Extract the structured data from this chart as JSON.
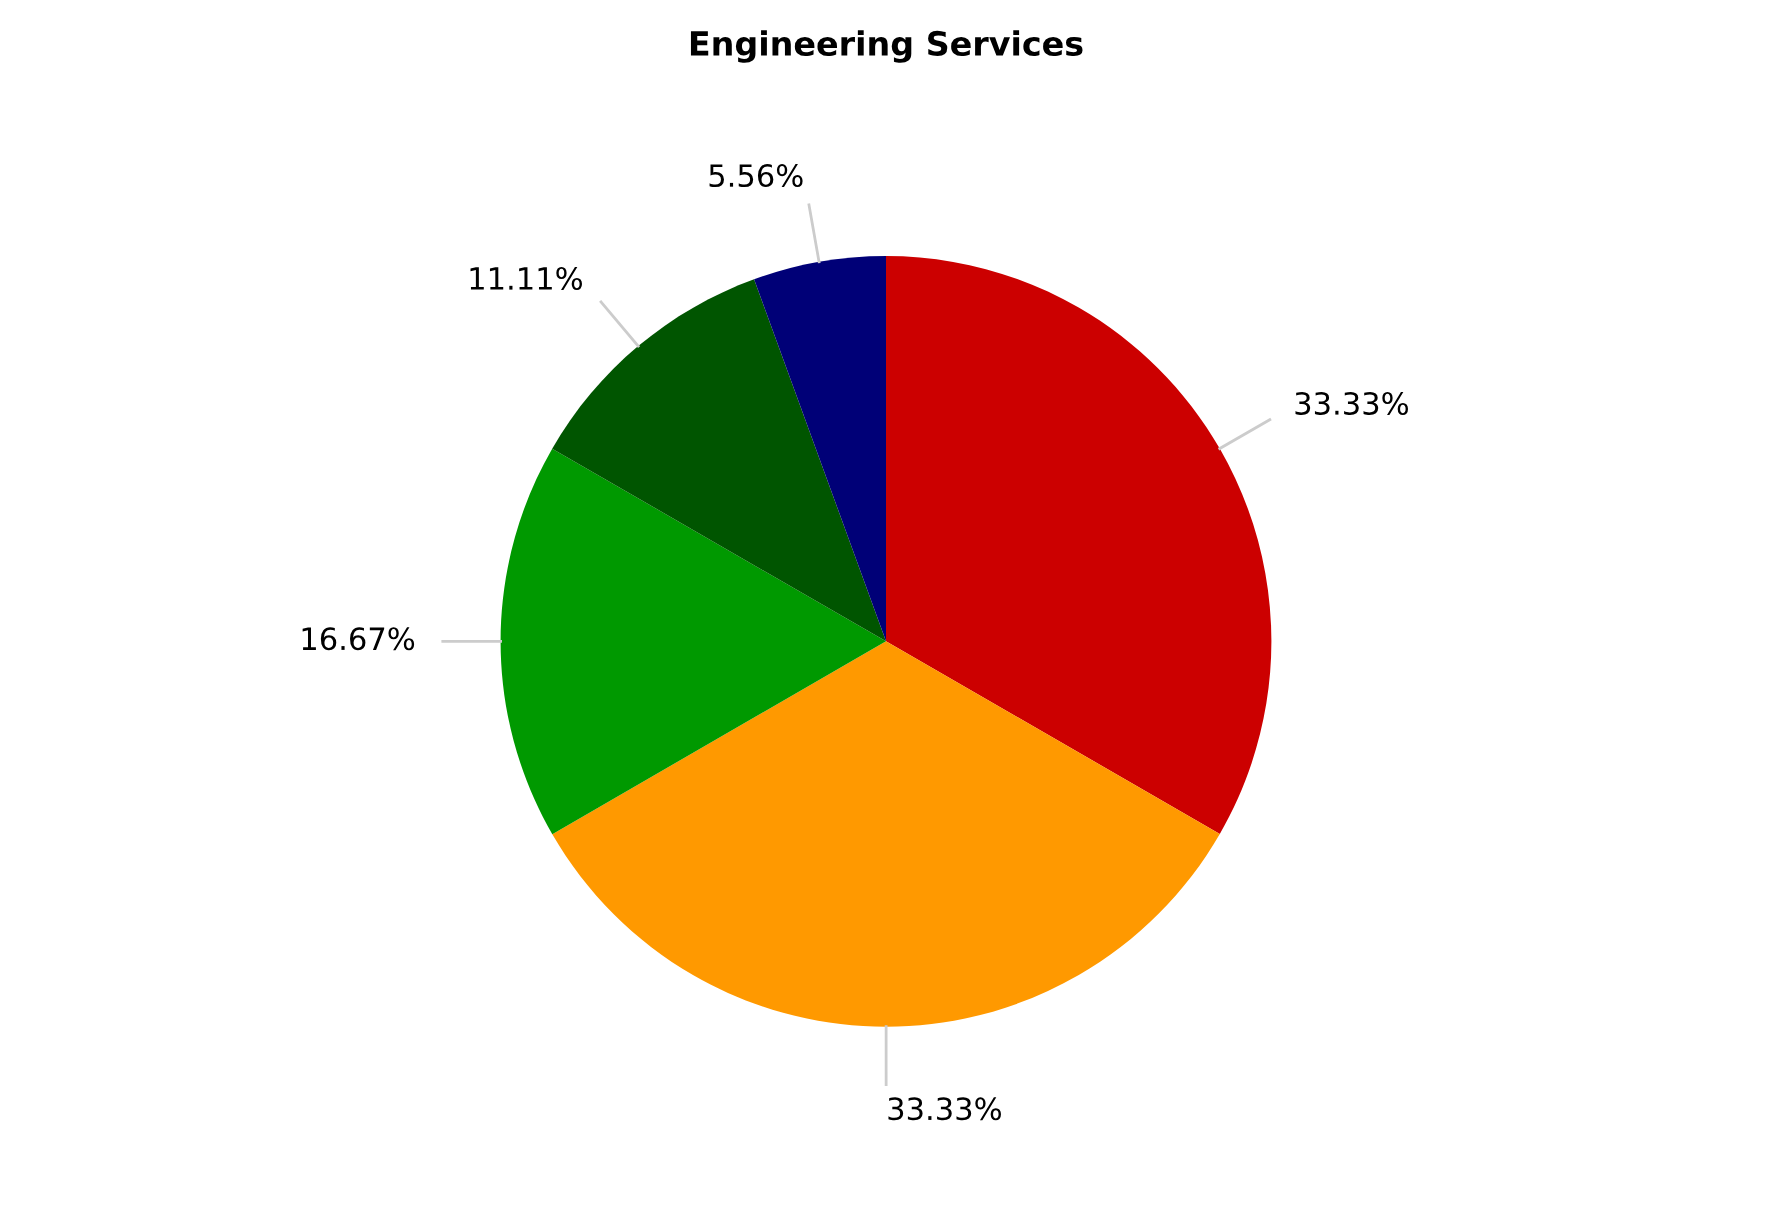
{
  "chart_data": {
    "type": "pie",
    "title": "Engineering Services",
    "categories": [
      null,
      null,
      null,
      null,
      null
    ],
    "values": [
      33.33,
      33.33,
      16.67,
      11.11,
      5.56
    ],
    "colors": [
      "#cc0000",
      "#ff9900",
      "#009900",
      "#005500",
      "#000077"
    ],
    "value_labels": [
      "33.33%",
      "33.33%",
      "16.67%",
      "11.11%",
      "5.56%"
    ]
  }
}
